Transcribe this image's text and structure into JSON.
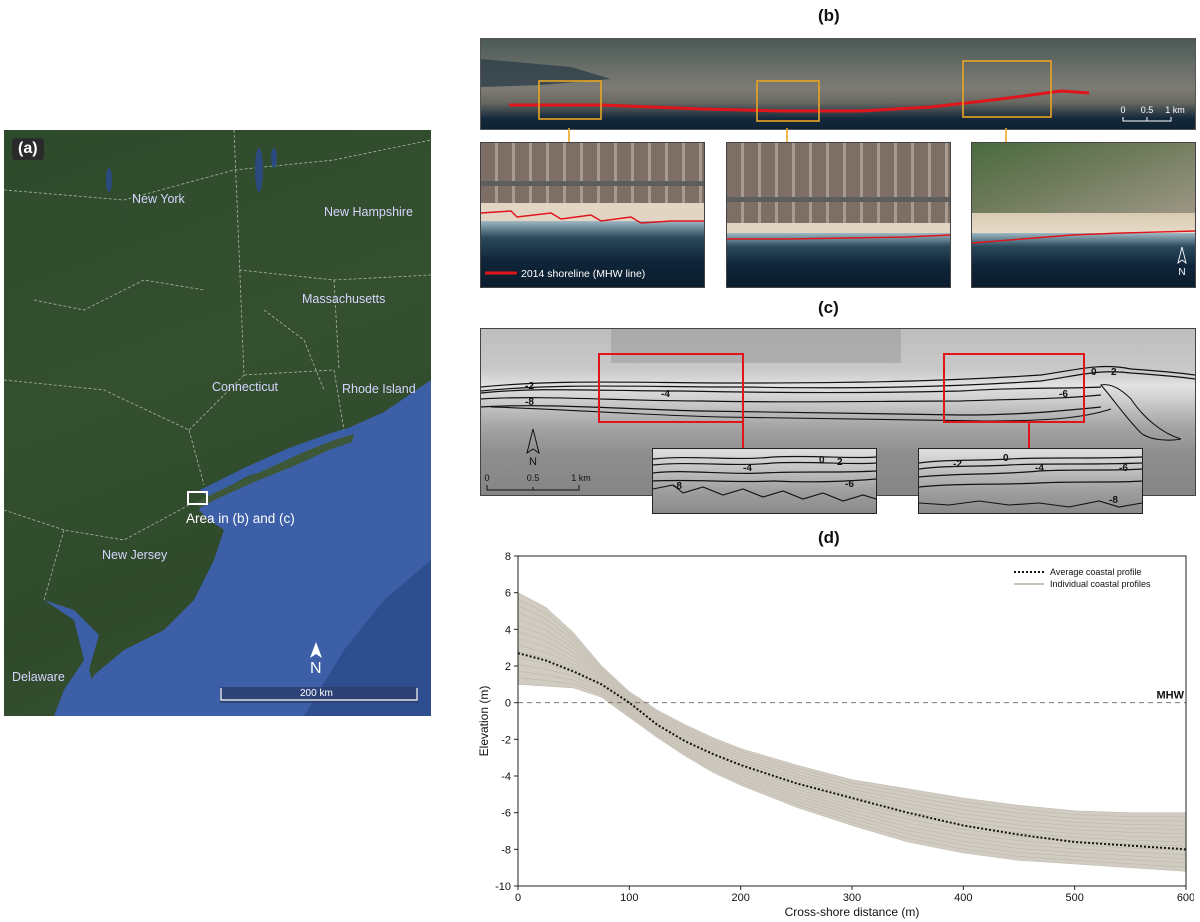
{
  "panel_a": {
    "letter": "(a)",
    "place_labels": {
      "new_york": "New York",
      "new_hampshire": "New Hampshire",
      "massachusetts": "Massachusetts",
      "connecticut": "Connecticut",
      "rhode_island": "Rhode Island",
      "new_jersey": "New Jersey",
      "delaware": "Delaware"
    },
    "area_label": "Area in (b) and (c)",
    "north_label": "N",
    "scale_label": "200 km",
    "colors": {
      "land": "#34502f",
      "ocean": "#3c5fa8"
    }
  },
  "panel_b": {
    "letter": "(b)",
    "scale_ticks": [
      "0",
      "0.5",
      "1 km"
    ],
    "legend_label": "2014 shoreline (MHW line)",
    "north_label": "N",
    "colors": {
      "shoreline": "#e0141b",
      "zoom_box": "#e8a623"
    }
  },
  "panel_c": {
    "letter": "(c)",
    "north_label": "N",
    "scale_ticks": [
      "0",
      "0.5",
      "1 km"
    ],
    "main_labels": [
      "0",
      "2",
      "-2",
      "-4",
      "-6",
      "-8"
    ],
    "inset1_labels": [
      "0",
      "2",
      "-4",
      "-6",
      "-8"
    ],
    "inset2_labels": [
      "-2",
      "0",
      "-4",
      "-6",
      "-8"
    ],
    "colors": {
      "zoom_box": "#e0141b"
    }
  },
  "panel_d": {
    "letter": "(d)",
    "mhw_label": "MHW",
    "chart_data": {
      "type": "line",
      "xlabel": "Cross-shore distance (m)",
      "ylabel": "Elevation (m)",
      "xlim": [
        0,
        600
      ],
      "ylim": [
        -10,
        8
      ],
      "xticks": [
        0,
        100,
        200,
        300,
        400,
        500,
        600
      ],
      "yticks": [
        -10,
        -8,
        -6,
        -4,
        -2,
        0,
        2,
        4,
        6,
        8
      ],
      "grid": false,
      "legend_position": "top-right",
      "reference_line": {
        "y": 0,
        "label": "MHW",
        "style": "dashed"
      },
      "series": [
        {
          "name": "Average coastal profile",
          "style": "dotted",
          "color": "#111111",
          "x": [
            0,
            25,
            50,
            75,
            100,
            125,
            150,
            175,
            200,
            250,
            300,
            350,
            400,
            450,
            500,
            550,
            600
          ],
          "y": [
            2.7,
            2.3,
            1.7,
            1.0,
            0.0,
            -1.2,
            -2.1,
            -2.8,
            -3.4,
            -4.4,
            -5.2,
            -6.0,
            -6.7,
            -7.2,
            -7.6,
            -7.8,
            -8.0
          ]
        },
        {
          "name": "Individual coastal profiles",
          "style": "band",
          "color": "#c9c3b7",
          "x": [
            0,
            25,
            50,
            75,
            100,
            125,
            150,
            175,
            200,
            250,
            300,
            350,
            400,
            450,
            500,
            550,
            600
          ],
          "y_upper": [
            6.0,
            5.2,
            3.8,
            2.0,
            0.6,
            -0.4,
            -1.2,
            -1.9,
            -2.5,
            -3.4,
            -4.2,
            -4.7,
            -5.2,
            -5.6,
            -5.9,
            -6.0,
            -6.0
          ],
          "y_lower": [
            1.0,
            0.9,
            0.8,
            0.3,
            -0.8,
            -1.9,
            -2.9,
            -3.8,
            -4.5,
            -5.7,
            -6.7,
            -7.6,
            -8.2,
            -8.6,
            -8.8,
            -9.0,
            -9.2
          ]
        }
      ]
    }
  }
}
